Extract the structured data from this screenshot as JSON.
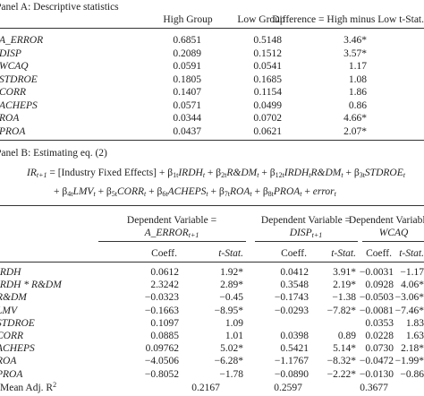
{
  "panel_a": {
    "title": "Panel A: Descriptive statistics",
    "columns": [
      "High Group",
      "Low Group",
      "Difference = High minus Low t-Stat."
    ],
    "rows": [
      [
        "A_ERROR",
        "0.6851",
        "0.5148",
        "3.46*"
      ],
      [
        "DISP",
        "0.2089",
        "0.1512",
        "3.57*"
      ],
      [
        "WCAQ",
        "0.0591",
        "0.0541",
        "1.17"
      ],
      [
        "STDROE",
        "0.1805",
        "0.1685",
        "1.08"
      ],
      [
        "CORR",
        "0.1407",
        "0.1154",
        "1.86"
      ],
      [
        "ACHEPS",
        "0.0571",
        "0.0499",
        "0.86"
      ],
      [
        "ROA",
        "0.0344",
        "0.0702",
        "4.66*"
      ],
      [
        "PROA",
        "0.0437",
        "0.0621",
        "2.07*"
      ]
    ]
  },
  "panel_b": {
    "title": "Panel B: Estimating eq. (2)",
    "equation": [
      [
        {
          "text": "IR",
          "sub": "t+1",
          "italic": true
        },
        {
          "text": " = [Industry Fixed Effects] + β",
          "sub": "1t"
        },
        {
          "text": "IRDH",
          "sub": "t",
          "italic": true
        },
        {
          "text": " + β",
          "sub": "2t"
        },
        {
          "text": "R&DM",
          "sub": "t",
          "italic": true
        },
        {
          "text": " + β",
          "sub": "12t"
        },
        {
          "text": "IRDH",
          "sub": "t",
          "italic": true
        },
        {
          "text": "R&DM",
          "sub": "t",
          "italic": true
        },
        {
          "text": " + β",
          "sub": "3t"
        },
        {
          "text": "STDROE",
          "sub": "t",
          "italic": true
        }
      ],
      [
        {
          "text": "+ β",
          "sub": "4t"
        },
        {
          "text": "LMV",
          "sub": "t",
          "italic": true
        },
        {
          "text": " + β",
          "sub": "5t"
        },
        {
          "text": "CORR",
          "sub": "t",
          "italic": true
        },
        {
          "text": " + β",
          "sub": "6t"
        },
        {
          "text": "ACHEPS",
          "sub": "t",
          "italic": true
        },
        {
          "text": " + β",
          "sub": "7t"
        },
        {
          "text": "ROA",
          "sub": "t",
          "italic": true
        },
        {
          "text": " + β",
          "sub": "8t"
        },
        {
          "text": "PROA",
          "sub": "t",
          "italic": true
        },
        {
          "text": " + "
        },
        {
          "text": "error",
          "sub": "t",
          "italic": true
        }
      ]
    ],
    "dependent_label": "Dependent Variable =",
    "dependents": [
      {
        "text": "A_ERROR",
        "sub": "t+1"
      },
      {
        "text": "DISP",
        "sub": "t+1"
      },
      {
        "text": "WCAQ"
      }
    ],
    "subheaders": [
      "Coeff.",
      "t-Stat."
    ],
    "rows": [
      [
        "IRDH",
        "0.0612",
        "1.92*",
        "0.0412",
        "3.91*",
        "−0.0031",
        "−1.17"
      ],
      [
        "IRDH * R&DM",
        "2.3242",
        "2.89*",
        "0.3548",
        "2.19*",
        "0.0928",
        "4.06*"
      ],
      [
        "R&DM",
        "−0.0323",
        "−0.45",
        "−0.1743",
        "−1.38",
        "−0.0503",
        "−3.06*"
      ],
      [
        "LMV",
        "−0.1663",
        "−8.95*",
        "−0.0293",
        "−7.82*",
        "−0.0081",
        "−7.46*"
      ],
      [
        "STDROE",
        "0.1097",
        "1.09",
        null,
        null,
        "0.0353",
        "1.83"
      ],
      [
        "CORR",
        "0.0885",
        "1.01",
        "0.0398",
        "0.89",
        "0.0228",
        "1.63"
      ],
      [
        "ACHEPS",
        "0.09762",
        "5.02*",
        "0.5421",
        "5.14*",
        "0.0730",
        "2.18*"
      ],
      [
        "ROA",
        "−4.0506",
        "−6.28*",
        "−1.1767",
        "−8.32*",
        "−0.0472",
        "−1.99*"
      ],
      [
        "PROA",
        "−0.8052",
        "−1.78",
        "−0.0890",
        "−2.22*",
        "−0.0130",
        "−0.86"
      ]
    ],
    "mean_adj_r2": {
      "label": "Mean Adj. R",
      "sup": "2",
      "values": [
        "0.2167",
        "0.2597",
        "0.3677"
      ]
    }
  }
}
